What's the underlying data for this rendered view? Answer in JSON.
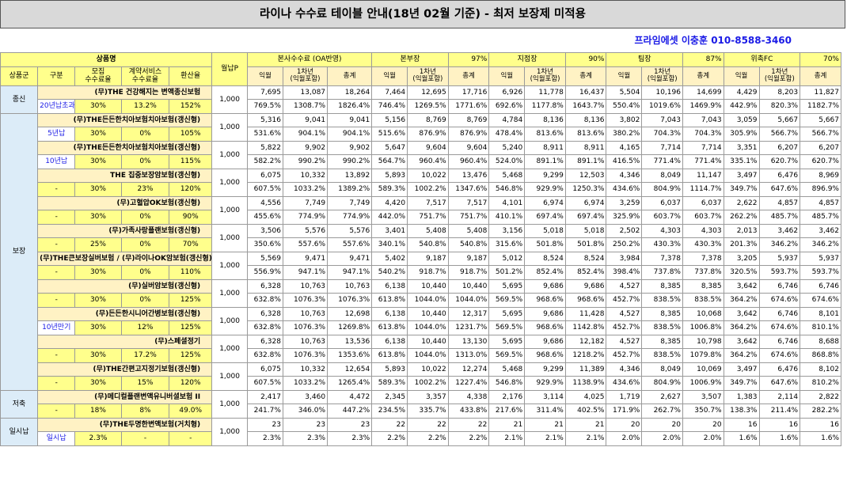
{
  "title": "라이나 수수료 테이블 안내(18년 02월 기준) - 최저 보장제 미적용",
  "contact": "프라임에셋 이충훈 010-8588-3460",
  "header": {
    "product_name": "상품명",
    "premium": "월납P",
    "product_group": "상품군",
    "category": "구분",
    "recruit_fee": "모집\n수수료율",
    "contract_fee": "계약서비스\n수수료율",
    "conversion": "환산율",
    "groups": [
      {
        "name": "본사수수료 (OA반영)",
        "pct": ""
      },
      {
        "name": "본부장",
        "pct": "97%"
      },
      {
        "name": "지점장",
        "pct": "90%"
      },
      {
        "name": "팀장",
        "pct": "87%"
      },
      {
        "name": "위촉FC",
        "pct": "70%"
      }
    ],
    "col_month": "익월",
    "col_year": "1차년\n(익월포함)",
    "col_total": "총계"
  },
  "rows": [
    {
      "group": "종신",
      "name": "(무)THE 건강해지는 변액종신보험",
      "cat": "20년납초과",
      "recruit": "30%",
      "contract": "13.2%",
      "conv": "152%",
      "prem": "1,000",
      "v1": [
        "7,695",
        "13,087",
        "18,264",
        "7,464",
        "12,695",
        "17,716",
        "6,926",
        "11,778",
        "16,437",
        "5,504",
        "10,196",
        "14,699",
        "4,429",
        "8,203",
        "11,827"
      ],
      "v2": [
        "769.5%",
        "1308.7%",
        "1826.4%",
        "746.4%",
        "1269.5%",
        "1771.6%",
        "692.6%",
        "1177.8%",
        "1643.7%",
        "550.4%",
        "1019.6%",
        "1469.9%",
        "442.9%",
        "820.3%",
        "1182.7%"
      ]
    },
    {
      "group": "보장",
      "name": "(무)THE든든한치아보험치아보험(갱신형)",
      "cat": "5년납",
      "recruit": "30%",
      "contract": "0%",
      "conv": "105%",
      "prem": "1,000",
      "v1": [
        "5,316",
        "9,041",
        "9,041",
        "5,156",
        "8,769",
        "8,769",
        "4,784",
        "8,136",
        "8,136",
        "3,802",
        "7,043",
        "7,043",
        "3,059",
        "5,667",
        "5,667"
      ],
      "v2": [
        "531.6%",
        "904.1%",
        "904.1%",
        "515.6%",
        "876.9%",
        "876.9%",
        "478.4%",
        "813.6%",
        "813.6%",
        "380.2%",
        "704.3%",
        "704.3%",
        "305.9%",
        "566.7%",
        "566.7%"
      ]
    },
    {
      "group": "",
      "name": "(무)THE든든한치아보험치아보험(갱신형)",
      "cat": "10년납",
      "recruit": "30%",
      "contract": "0%",
      "conv": "115%",
      "prem": "1,000",
      "v1": [
        "5,822",
        "9,902",
        "9,902",
        "5,647",
        "9,604",
        "9,604",
        "5,240",
        "8,911",
        "8,911",
        "4,165",
        "7,714",
        "7,714",
        "3,351",
        "6,207",
        "6,207"
      ],
      "v2": [
        "582.2%",
        "990.2%",
        "990.2%",
        "564.7%",
        "960.4%",
        "960.4%",
        "524.0%",
        "891.1%",
        "891.1%",
        "416.5%",
        "771.4%",
        "771.4%",
        "335.1%",
        "620.7%",
        "620.7%"
      ]
    },
    {
      "group": "",
      "name": "THE 집중보장암보험(갱신형)",
      "cat": "-",
      "recruit": "30%",
      "contract": "23%",
      "conv": "120%",
      "prem": "1,000",
      "v1": [
        "6,075",
        "10,332",
        "13,892",
        "5,893",
        "10,022",
        "13,476",
        "5,468",
        "9,299",
        "12,503",
        "4,346",
        "8,049",
        "11,147",
        "3,497",
        "6,476",
        "8,969"
      ],
      "v2": [
        "607.5%",
        "1033.2%",
        "1389.2%",
        "589.3%",
        "1002.2%",
        "1347.6%",
        "546.8%",
        "929.9%",
        "1250.3%",
        "434.6%",
        "804.9%",
        "1114.7%",
        "349.7%",
        "647.6%",
        "896.9%"
      ]
    },
    {
      "group": "",
      "name": "(무)고혈압OK보험(갱신형)",
      "cat": "-",
      "recruit": "30%",
      "contract": "0%",
      "conv": "90%",
      "prem": "1,000",
      "v1": [
        "4,556",
        "7,749",
        "7,749",
        "4,420",
        "7,517",
        "7,517",
        "4,101",
        "6,974",
        "6,974",
        "3,259",
        "6,037",
        "6,037",
        "2,622",
        "4,857",
        "4,857"
      ],
      "v2": [
        "455.6%",
        "774.9%",
        "774.9%",
        "442.0%",
        "751.7%",
        "751.7%",
        "410.1%",
        "697.4%",
        "697.4%",
        "325.9%",
        "603.7%",
        "603.7%",
        "262.2%",
        "485.7%",
        "485.7%"
      ]
    },
    {
      "group": "",
      "name": "(무)가족사랑플랜보험(갱신형)",
      "cat": "-",
      "recruit": "25%",
      "contract": "0%",
      "conv": "70%",
      "prem": "1,000",
      "v1": [
        "3,506",
        "5,576",
        "5,576",
        "3,401",
        "5,408",
        "5,408",
        "3,156",
        "5,018",
        "5,018",
        "2,502",
        "4,303",
        "4,303",
        "2,013",
        "3,462",
        "3,462"
      ],
      "v2": [
        "350.6%",
        "557.6%",
        "557.6%",
        "340.1%",
        "540.8%",
        "540.8%",
        "315.6%",
        "501.8%",
        "501.8%",
        "250.2%",
        "430.3%",
        "430.3%",
        "201.3%",
        "346.2%",
        "346.2%"
      ]
    },
    {
      "group": "",
      "name": "(무)THE큰보장실버보험 / (무)라이나OK암보험(갱신형)",
      "cat": "-",
      "recruit": "30%",
      "contract": "0%",
      "conv": "110%",
      "prem": "1,000",
      "v1": [
        "5,569",
        "9,471",
        "9,471",
        "5,402",
        "9,187",
        "9,187",
        "5,012",
        "8,524",
        "8,524",
        "3,984",
        "7,378",
        "7,378",
        "3,205",
        "5,937",
        "5,937"
      ],
      "v2": [
        "556.9%",
        "947.1%",
        "947.1%",
        "540.2%",
        "918.7%",
        "918.7%",
        "501.2%",
        "852.4%",
        "852.4%",
        "398.4%",
        "737.8%",
        "737.8%",
        "320.5%",
        "593.7%",
        "593.7%"
      ]
    },
    {
      "group": "",
      "name": "(무)실버암보험(갱신형)",
      "cat": "-",
      "recruit": "30%",
      "contract": "0%",
      "conv": "125%",
      "prem": "1,000",
      "v1": [
        "6,328",
        "10,763",
        "10,763",
        "6,138",
        "10,440",
        "10,440",
        "5,695",
        "9,686",
        "9,686",
        "4,527",
        "8,385",
        "8,385",
        "3,642",
        "6,746",
        "6,746"
      ],
      "v2": [
        "632.8%",
        "1076.3%",
        "1076.3%",
        "613.8%",
        "1044.0%",
        "1044.0%",
        "569.5%",
        "968.6%",
        "968.6%",
        "452.7%",
        "838.5%",
        "838.5%",
        "364.2%",
        "674.6%",
        "674.6%"
      ]
    },
    {
      "group": "",
      "name": "(무)든든한시니어간병보험(갱신형)",
      "cat": "10년만기",
      "recruit": "30%",
      "contract": "12%",
      "conv": "125%",
      "prem": "1,000",
      "v1": [
        "6,328",
        "10,763",
        "12,698",
        "6,138",
        "10,440",
        "12,317",
        "5,695",
        "9,686",
        "11,428",
        "4,527",
        "8,385",
        "10,068",
        "3,642",
        "6,746",
        "8,101"
      ],
      "v2": [
        "632.8%",
        "1076.3%",
        "1269.8%",
        "613.8%",
        "1044.0%",
        "1231.7%",
        "569.5%",
        "968.6%",
        "1142.8%",
        "452.7%",
        "838.5%",
        "1006.8%",
        "364.2%",
        "674.6%",
        "810.1%"
      ]
    },
    {
      "group": "",
      "name": "(무)스페셜정기",
      "cat": "-",
      "recruit": "30%",
      "contract": "17.2%",
      "conv": "125%",
      "prem": "1,000",
      "v1": [
        "6,328",
        "10,763",
        "13,536",
        "6,138",
        "10,440",
        "13,130",
        "5,695",
        "9,686",
        "12,182",
        "4,527",
        "8,385",
        "10,798",
        "3,642",
        "6,746",
        "8,688"
      ],
      "v2": [
        "632.8%",
        "1076.3%",
        "1353.6%",
        "613.8%",
        "1044.0%",
        "1313.0%",
        "569.5%",
        "968.6%",
        "1218.2%",
        "452.7%",
        "838.5%",
        "1079.8%",
        "364.2%",
        "674.6%",
        "868.8%"
      ]
    },
    {
      "group": "",
      "name": "(무)THE간편고지정기보험(갱신형)",
      "cat": "-",
      "recruit": "30%",
      "contract": "15%",
      "conv": "120%",
      "prem": "1,000",
      "v1": [
        "6,075",
        "10,332",
        "12,654",
        "5,893",
        "10,022",
        "12,274",
        "5,468",
        "9,299",
        "11,389",
        "4,346",
        "8,049",
        "10,069",
        "3,497",
        "6,476",
        "8,102"
      ],
      "v2": [
        "607.5%",
        "1033.2%",
        "1265.4%",
        "589.3%",
        "1002.2%",
        "1227.4%",
        "546.8%",
        "929.9%",
        "1138.9%",
        "434.6%",
        "804.9%",
        "1006.9%",
        "349.7%",
        "647.6%",
        "810.2%"
      ]
    },
    {
      "group": "저축",
      "name": "(무)메디컬플랜변액유니버셜보험 II",
      "cat": "-",
      "recruit": "18%",
      "contract": "8%",
      "conv": "49.0%",
      "prem": "1,000",
      "v1": [
        "2,417",
        "3,460",
        "4,472",
        "2,345",
        "3,357",
        "4,338",
        "2,176",
        "3,114",
        "4,025",
        "1,719",
        "2,627",
        "3,507",
        "1,383",
        "2,114",
        "2,822"
      ],
      "v2": [
        "241.7%",
        "346.0%",
        "447.2%",
        "234.5%",
        "335.7%",
        "433.8%",
        "217.6%",
        "311.4%",
        "402.5%",
        "171.9%",
        "262.7%",
        "350.7%",
        "138.3%",
        "211.4%",
        "282.2%"
      ]
    },
    {
      "group": "일시납",
      "name": "(무)THE두명한변액보험(거치형)",
      "cat": "일시납",
      "recruit": "2.3%",
      "contract": "-",
      "conv": "-",
      "prem": "1,000",
      "v1": [
        "23",
        "23",
        "23",
        "22",
        "22",
        "22",
        "21",
        "21",
        "21",
        "20",
        "20",
        "20",
        "16",
        "16",
        "16"
      ],
      "v2": [
        "2.3%",
        "2.3%",
        "2.3%",
        "2.2%",
        "2.2%",
        "2.2%",
        "2.1%",
        "2.1%",
        "2.1%",
        "2.0%",
        "2.0%",
        "2.0%",
        "1.6%",
        "1.6%",
        "1.6%"
      ]
    }
  ]
}
